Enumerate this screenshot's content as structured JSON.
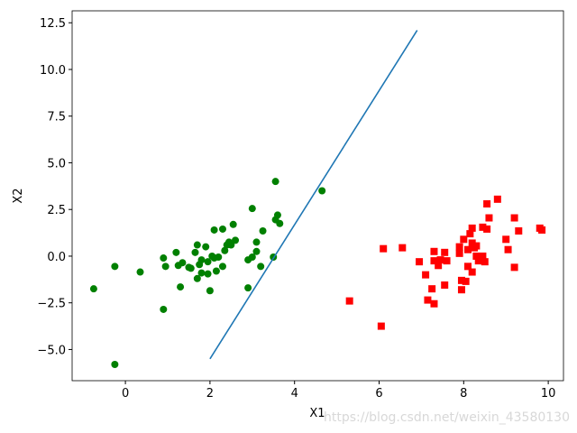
{
  "chart_data": {
    "type": "scatter",
    "x_label": "X1",
    "y_label": "X2",
    "watermark": "https://blog.csdn.net/weixin_43580130",
    "xlim": [
      -1.26,
      10.36
    ],
    "ylim": [
      -6.67,
      13.14
    ],
    "xticks": [
      0,
      2,
      4,
      6,
      8,
      10
    ],
    "yticks": [
      {
        "value": -5.0,
        "label": "−5.0"
      },
      {
        "value": -2.5,
        "label": "−2.5"
      },
      {
        "value": 0.0,
        "label": "0.0"
      },
      2.5,
      {
        "value": 5.0,
        "label": "5.0"
      },
      7.5,
      {
        "value": 10.0,
        "label": "10.0"
      },
      12.5
    ],
    "series": [
      {
        "type": "scatter",
        "marker": "circle",
        "color": "#008000",
        "x": [
          -0.75,
          -0.25,
          -0.25,
          0.35,
          0.9,
          0.95,
          0.9,
          1.2,
          1.25,
          1.35,
          1.3,
          1.5,
          1.55,
          1.65,
          1.7,
          1.7,
          1.75,
          1.8,
          1.8,
          1.9,
          1.95,
          1.95,
          2.0,
          2.05,
          2.1,
          2.1,
          2.15,
          2.2,
          2.3,
          2.3,
          2.35,
          2.4,
          2.45,
          2.5,
          2.55,
          2.6,
          2.9,
          2.9,
          3.0,
          3.0,
          3.1,
          3.1,
          3.2,
          3.25,
          3.5,
          3.55,
          3.55,
          3.6,
          3.65,
          4.65
        ],
        "values": [
          -1.75,
          -0.55,
          -5.8,
          -0.85,
          -0.1,
          -0.55,
          -2.85,
          0.2,
          -0.5,
          -0.35,
          -1.65,
          -0.6,
          -0.65,
          0.2,
          0.6,
          -1.2,
          -0.45,
          -0.2,
          -0.9,
          0.5,
          -0.95,
          -0.3,
          -1.85,
          0.0,
          -0.1,
          1.4,
          -0.8,
          -0.05,
          1.45,
          -0.55,
          0.3,
          0.6,
          0.75,
          0.6,
          1.7,
          0.85,
          -0.2,
          -1.7,
          2.55,
          -0.05,
          0.75,
          0.25,
          -0.55,
          1.35,
          -0.05,
          1.95,
          4.0,
          2.2,
          1.75,
          3.5
        ]
      },
      {
        "type": "scatter",
        "marker": "square",
        "color": "#ff0000",
        "x": [
          5.3,
          6.05,
          6.1,
          6.55,
          6.95,
          7.1,
          7.15,
          7.25,
          7.3,
          7.3,
          7.3,
          7.4,
          7.45,
          7.55,
          7.55,
          7.6,
          7.9,
          7.9,
          7.95,
          7.95,
          8.0,
          8.05,
          8.1,
          8.1,
          8.15,
          8.2,
          8.2,
          8.2,
          8.25,
          8.3,
          8.3,
          8.35,
          8.45,
          8.45,
          8.5,
          8.55,
          8.55,
          8.6,
          8.8,
          9.0,
          9.05,
          9.2,
          9.2,
          9.3,
          9.8,
          9.85
        ],
        "values": [
          -2.4,
          -3.75,
          0.4,
          0.45,
          -0.3,
          -1.0,
          -2.35,
          -1.75,
          -2.55,
          0.25,
          -0.25,
          -0.5,
          -0.2,
          -1.55,
          0.2,
          -0.25,
          0.5,
          0.15,
          -1.3,
          -1.8,
          0.9,
          -1.35,
          -0.55,
          0.35,
          1.2,
          -0.85,
          1.5,
          0.7,
          0.45,
          0.0,
          0.55,
          -0.25,
          1.55,
          0.0,
          -0.3,
          1.45,
          2.8,
          2.05,
          3.05,
          0.9,
          0.35,
          -0.6,
          2.05,
          1.35,
          1.5,
          1.4
        ]
      },
      {
        "type": "line",
        "color": "#1f77b4",
        "x": [
          2.0,
          6.9
        ],
        "values": [
          -5.5,
          12.1
        ]
      }
    ]
  }
}
